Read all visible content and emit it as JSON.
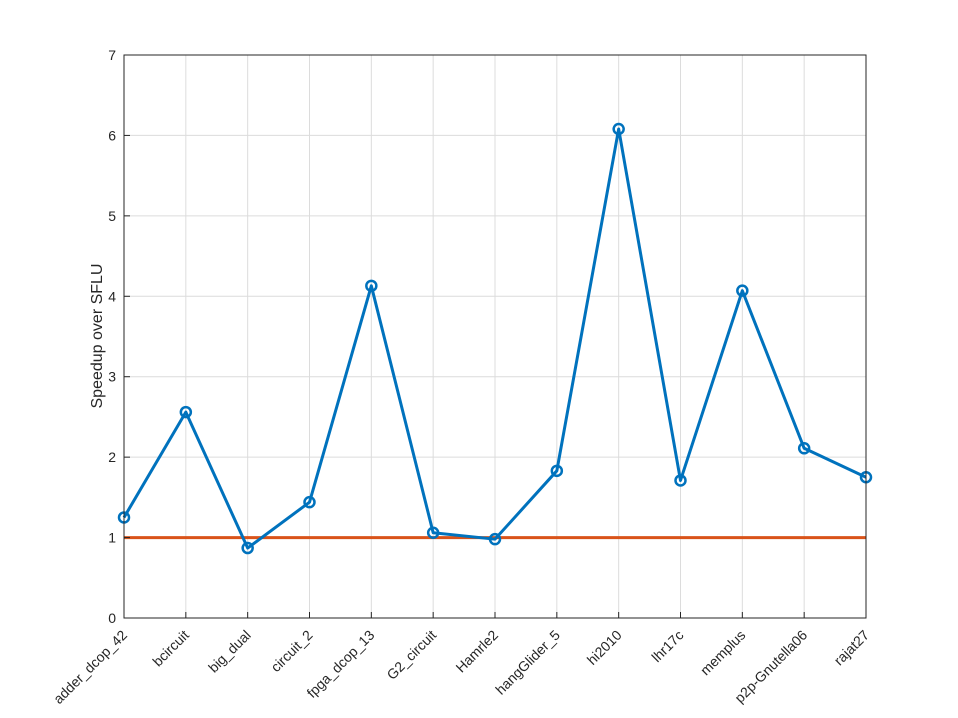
{
  "chart_data": {
    "type": "line",
    "title": "",
    "xlabel": "",
    "ylabel": "Speedup over SFLU",
    "ylim": [
      0,
      7
    ],
    "yticks": [
      0,
      1,
      2,
      3,
      4,
      5,
      6,
      7
    ],
    "grid": true,
    "legend": "none",
    "categories": [
      "adder_dcop_42",
      "bcircuit",
      "big_dual",
      "circuit_2",
      "fpga_dcop_13",
      "G2_circuit",
      "Hamrle2",
      "hangGlider_5",
      "hi2010",
      "lhr17c",
      "memplus",
      "p2p-Gnutella06",
      "rajat27"
    ],
    "series": [
      {
        "color": "#0072BD",
        "marker": "circle",
        "values": [
          1.25,
          2.56,
          0.87,
          1.44,
          4.13,
          1.06,
          0.98,
          1.83,
          6.08,
          1.71,
          4.07,
          2.11,
          1.75
        ]
      }
    ],
    "reference_line": {
      "y": 1,
      "color": "#D95319"
    }
  }
}
